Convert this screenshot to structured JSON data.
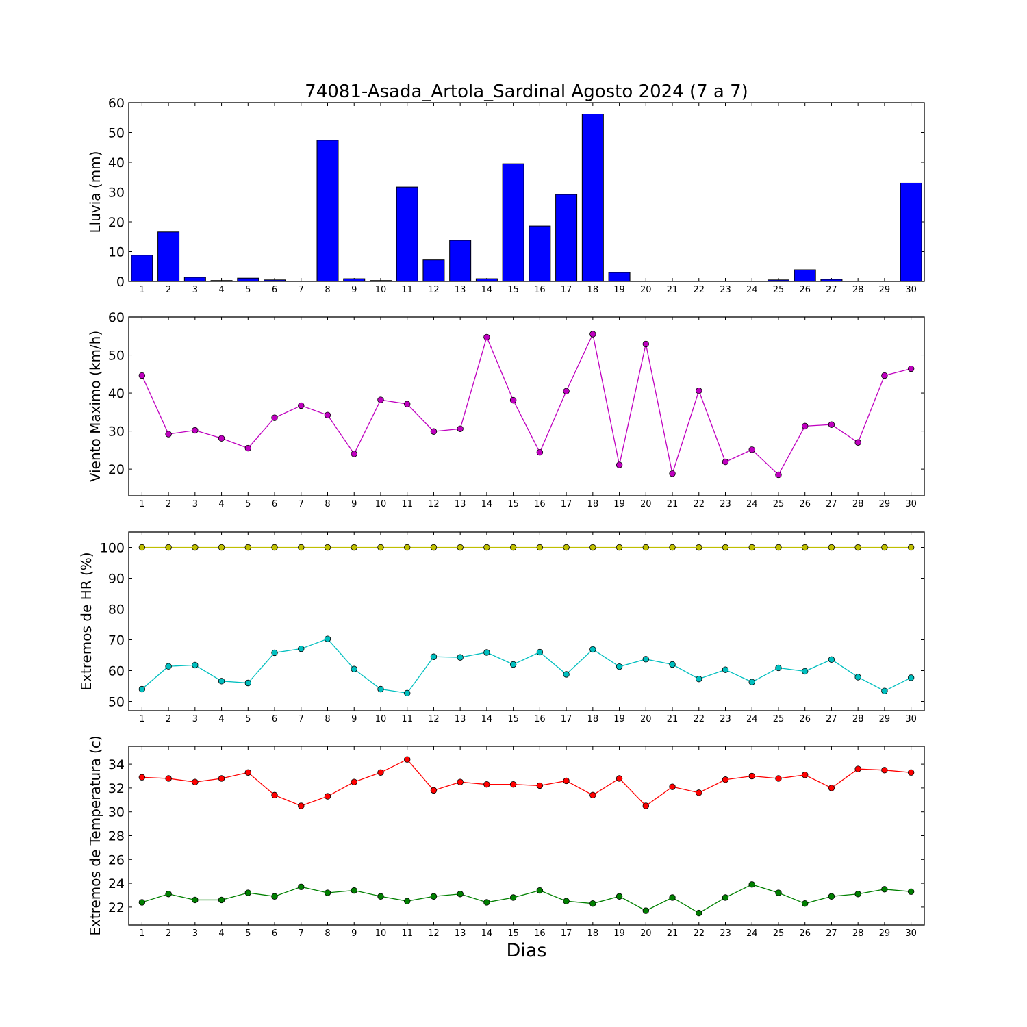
{
  "title": "74081-Asada_Artola_Sardinal Agosto 2024  (7 a 7)",
  "xlabel": "Dias",
  "chart_data": [
    {
      "type": "bar",
      "ylabel": "Lluvia (mm)",
      "ylim": [
        0,
        60
      ],
      "yticks": [
        0,
        10,
        20,
        30,
        40,
        50,
        60
      ],
      "categories": [
        "1",
        "2",
        "3",
        "4",
        "5",
        "6",
        "7",
        "8",
        "9",
        "10",
        "11",
        "12",
        "13",
        "14",
        "15",
        "16",
        "17",
        "18",
        "19",
        "20",
        "21",
        "22",
        "23",
        "24",
        "25",
        "26",
        "27",
        "28",
        "29",
        "30"
      ],
      "series": [
        {
          "color": "#0000ff",
          "values": [
            8.8,
            16.6,
            1.4,
            0.3,
            1.1,
            0.5,
            0.1,
            47.4,
            0.9,
            0.3,
            31.7,
            7.2,
            13.8,
            0.9,
            39.5,
            18.6,
            29.2,
            56.2,
            3.0,
            0.1,
            0.0,
            0.0,
            0.0,
            0.0,
            0.5,
            3.9,
            0.7,
            0.0,
            0.0,
            33.0
          ]
        }
      ]
    },
    {
      "type": "line",
      "ylabel": "Viento Maximo (km/h)",
      "ylim": [
        13,
        60
      ],
      "yticks": [
        20,
        30,
        40,
        50,
        60
      ],
      "categories": [
        "1",
        "2",
        "3",
        "4",
        "5",
        "6",
        "7",
        "8",
        "9",
        "10",
        "11",
        "12",
        "13",
        "14",
        "15",
        "16",
        "17",
        "18",
        "19",
        "20",
        "21",
        "22",
        "23",
        "24",
        "25",
        "26",
        "27",
        "28",
        "29",
        "30"
      ],
      "series": [
        {
          "color": "#bf00bf",
          "values": [
            44.6,
            29.2,
            30.2,
            28.1,
            25.5,
            33.5,
            36.7,
            34.2,
            24.0,
            38.2,
            37.1,
            29.9,
            30.6,
            54.7,
            38.1,
            24.4,
            40.5,
            55.5,
            21.1,
            52.9,
            18.8,
            40.6,
            21.9,
            25.1,
            18.5,
            31.3,
            31.7,
            27.0,
            44.6,
            46.4
          ]
        }
      ]
    },
    {
      "type": "line",
      "ylabel": "Extremos de HR (%)",
      "ylim": [
        47,
        105
      ],
      "yticks": [
        50,
        60,
        70,
        80,
        90,
        100
      ],
      "categories": [
        "1",
        "2",
        "3",
        "4",
        "5",
        "6",
        "7",
        "8",
        "9",
        "10",
        "11",
        "12",
        "13",
        "14",
        "15",
        "16",
        "17",
        "18",
        "19",
        "20",
        "21",
        "22",
        "23",
        "24",
        "25",
        "26",
        "27",
        "28",
        "29",
        "30"
      ],
      "series": [
        {
          "color": "#bfbf00",
          "values": [
            100,
            100,
            100,
            100,
            100,
            100,
            100,
            100,
            100,
            100,
            100,
            100,
            100,
            100,
            100,
            100,
            100,
            100,
            100,
            100,
            100,
            100,
            100,
            100,
            100,
            100,
            100,
            100,
            100,
            100
          ]
        },
        {
          "color": "#00bfbf",
          "values": [
            54.0,
            61.4,
            61.8,
            56.6,
            56.0,
            65.8,
            67.1,
            70.3,
            60.5,
            54.0,
            52.7,
            64.5,
            64.3,
            65.9,
            62.0,
            66.0,
            58.8,
            66.9,
            61.3,
            63.7,
            62.0,
            57.3,
            60.3,
            56.3,
            60.9,
            59.8,
            63.6,
            57.9,
            53.4,
            57.7
          ]
        }
      ]
    },
    {
      "type": "line",
      "ylabel": "Extremos de Temperatura (c)",
      "ylim": [
        20.5,
        35.5
      ],
      "yticks": [
        22,
        24,
        26,
        28,
        30,
        32,
        34
      ],
      "categories": [
        "1",
        "2",
        "3",
        "4",
        "5",
        "6",
        "7",
        "8",
        "9",
        "10",
        "11",
        "12",
        "13",
        "14",
        "15",
        "16",
        "17",
        "18",
        "19",
        "20",
        "21",
        "22",
        "23",
        "24",
        "25",
        "26",
        "27",
        "28",
        "29",
        "30"
      ],
      "series": [
        {
          "color": "#ff0000",
          "values": [
            32.9,
            32.8,
            32.5,
            32.8,
            33.3,
            31.4,
            30.5,
            31.3,
            32.5,
            33.3,
            34.4,
            31.8,
            32.5,
            32.3,
            32.3,
            32.2,
            32.6,
            31.4,
            32.8,
            30.5,
            32.1,
            31.6,
            32.7,
            33.0,
            32.8,
            33.1,
            32.0,
            33.6,
            33.5,
            33.3
          ]
        },
        {
          "color": "#008000",
          "values": [
            22.4,
            23.1,
            22.6,
            22.6,
            23.2,
            22.9,
            23.7,
            23.2,
            23.4,
            22.9,
            22.5,
            22.9,
            23.1,
            22.4,
            22.8,
            23.4,
            22.5,
            22.3,
            22.9,
            21.7,
            22.8,
            21.5,
            22.8,
            23.9,
            23.2,
            22.3,
            22.9,
            23.1,
            23.5,
            23.3
          ]
        }
      ]
    }
  ]
}
